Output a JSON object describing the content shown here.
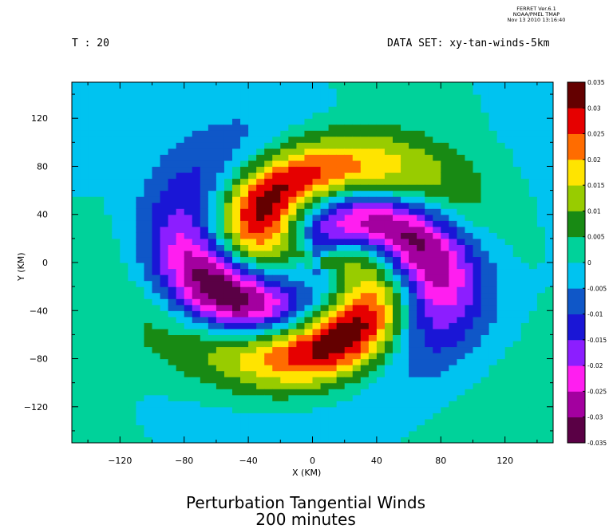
{
  "header": {
    "stamp_line1": "FERRET Ver.6.1",
    "stamp_line2": "NOAA/PMEL TMAP",
    "stamp_line3": "Nov 13 2010 13:16:40",
    "time_label": "T : 20",
    "dataset_label": "DATA SET: xy-tan-winds-5km"
  },
  "colors": {
    "levels": [
      "#5a0045",
      "#a3009f",
      "#ff1ef0",
      "#8c1eff",
      "#1a16d6",
      "#0f57c8",
      "#00c3f0",
      "#00d29a",
      "#188a14",
      "#98cc00",
      "#ffe400",
      "#ff6c00",
      "#e60000",
      "#640000"
    ]
  },
  "chart_data": {
    "type": "heatmap",
    "title": "Perturbation Tangential Winds",
    "subtitle": "200 minutes",
    "xlabel": "X (KM)",
    "ylabel": "Y (KM)",
    "xlim": [
      -150,
      150
    ],
    "ylim": [
      -150,
      150
    ],
    "xticks": [
      -120,
      -80,
      -40,
      0,
      40,
      80,
      120
    ],
    "yticks": [
      -120,
      -80,
      -40,
      0,
      40,
      80,
      120
    ],
    "colorbar_levels": [
      -0.035,
      -0.03,
      -0.025,
      -0.02,
      -0.015,
      -0.01,
      -0.005,
      0,
      0.005,
      0.01,
      0.015,
      0.02,
      0.025,
      0.03,
      0.035
    ],
    "colorbar_labels": [
      "-0.035",
      "-0.03",
      "-0.025",
      "-0.02",
      "-0.015",
      "-0.01",
      "-0.005",
      "0",
      "0.005",
      "0.01",
      "0.015",
      "0.02",
      "0.025",
      "0.03",
      "0.035"
    ],
    "grid": false,
    "legend": "colorbar-right"
  }
}
